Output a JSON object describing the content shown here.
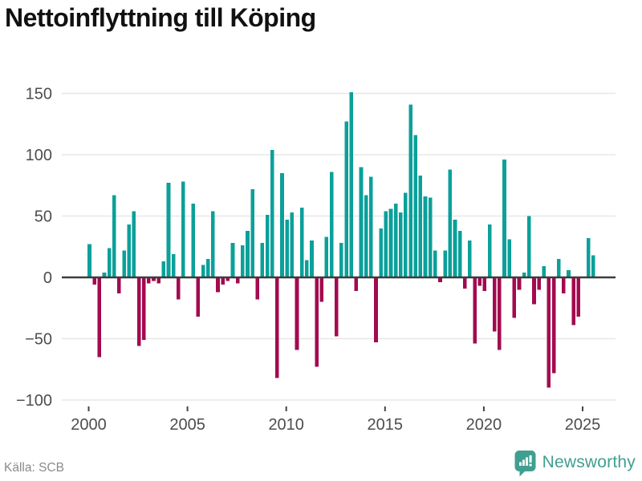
{
  "title": "Nettoinflyttning till Köping",
  "source_note": "Källa: SCB",
  "branding": {
    "wordmark": "Newsworthy"
  },
  "colors": {
    "positive_bar": "#0ba09a",
    "negative_bar": "#a30a4f",
    "zero_axis": "#3d3d3d",
    "gridline": "#e7e7e7",
    "tick_mark": "#444444",
    "axis_label": "#4d4d4d",
    "title_text": "#111111",
    "source_text": "#8a8a8a",
    "brand_teal": "#3f9f90",
    "background": "#ffffff"
  },
  "chart_data": {
    "type": "bar",
    "title": "Nettoinflyttning till Köping",
    "x_frequency": "quarterly",
    "x_start_period": "2000Q1",
    "x_end_period": "2025Q3",
    "x_tick_labels": [
      "2000",
      "2005",
      "2010",
      "2015",
      "2020",
      "2025"
    ],
    "y_ticks": [
      150,
      100,
      50,
      0,
      -50,
      -100
    ],
    "ylim": [
      -100,
      160
    ],
    "grid": "horizontal",
    "legend": "none",
    "xlabel": "",
    "ylabel": "",
    "series": [
      {
        "name": "Nettoinflyttning",
        "values": [
          27,
          -6,
          -65,
          4,
          24,
          67,
          -13,
          22,
          43,
          54,
          -56,
          -51,
          -5,
          -3,
          -5,
          13,
          77,
          19,
          -18,
          78,
          0,
          60,
          -32,
          10,
          15,
          54,
          -12,
          -6,
          -3,
          28,
          -5,
          26,
          38,
          72,
          -18,
          28,
          51,
          104,
          -82,
          85,
          47,
          53,
          -59,
          57,
          14,
          30,
          -73,
          -20,
          33,
          86,
          -48,
          28,
          127,
          151,
          -11,
          90,
          67,
          82,
          -53,
          40,
          54,
          56,
          60,
          53,
          69,
          141,
          116,
          83,
          66,
          65,
          22,
          -4,
          22,
          88,
          47,
          38,
          -9,
          30,
          -54,
          -7,
          -11,
          43,
          -44,
          -59,
          96,
          31,
          -33,
          -10,
          4,
          50,
          -22,
          -10,
          9,
          -90,
          -78,
          15,
          -13,
          6,
          -39,
          -32,
          0,
          32,
          18
        ]
      }
    ]
  }
}
